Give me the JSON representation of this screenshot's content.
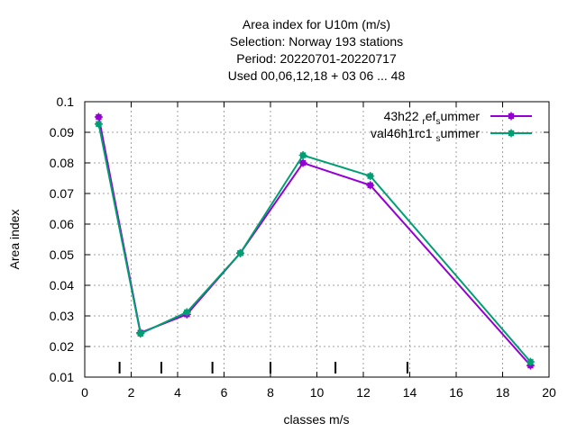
{
  "chart_data": {
    "type": "line",
    "title_lines": [
      "Area index  for U10m (m/s)",
      "Selection: Norway    193 stations",
      "Period: 20220701-20220717",
      "Used  00,06,12,18  + 03 06 ... 48"
    ],
    "xlabel": "classes m/s",
    "ylabel": "Area index",
    "xlim": [
      0,
      20
    ],
    "ylim": [
      0.01,
      0.1
    ],
    "x_ticks": [
      0,
      2,
      4,
      6,
      8,
      10,
      12,
      14,
      16,
      18,
      20
    ],
    "y_ticks": [
      0.01,
      0.02,
      0.03,
      0.04,
      0.05,
      0.06,
      0.07,
      0.08,
      0.09,
      0.1
    ],
    "y_tick_labels": [
      "0.01",
      "0.02",
      "0.03",
      "0.04",
      "0.05",
      "0.06",
      "0.07",
      "0.08",
      "0.09",
      "0.1"
    ],
    "grid": true,
    "legend_position": "top-right",
    "class_boundaries": [
      1.5,
      3.3,
      5.5,
      8.0,
      10.8,
      13.9
    ],
    "series": [
      {
        "legend_main": "43h22",
        "legend_parts": [
          {
            "text": "43h22 ",
            "sub": false
          },
          {
            "text": "r",
            "sub": true
          },
          {
            "text": "ef",
            "sub": false
          },
          {
            "text": "s",
            "sub": true
          },
          {
            "text": "ummer",
            "sub": false
          }
        ],
        "color": "#9400d3",
        "x": [
          0.6,
          2.4,
          4.4,
          6.7,
          9.4,
          12.3,
          19.2
        ],
        "values": [
          0.095,
          0.0245,
          0.0305,
          0.0505,
          0.08,
          0.0727,
          0.0138
        ]
      },
      {
        "legend_main": "val46h1rc1",
        "legend_parts": [
          {
            "text": "val46h1rc1 ",
            "sub": false
          },
          {
            "text": "s",
            "sub": true
          },
          {
            "text": "ummer",
            "sub": false
          }
        ],
        "color": "#009e73",
        "x": [
          0.6,
          2.4,
          4.4,
          6.7,
          9.4,
          12.3,
          19.2
        ],
        "values": [
          0.0927,
          0.0242,
          0.0312,
          0.0505,
          0.0825,
          0.0757,
          0.015
        ]
      }
    ]
  }
}
